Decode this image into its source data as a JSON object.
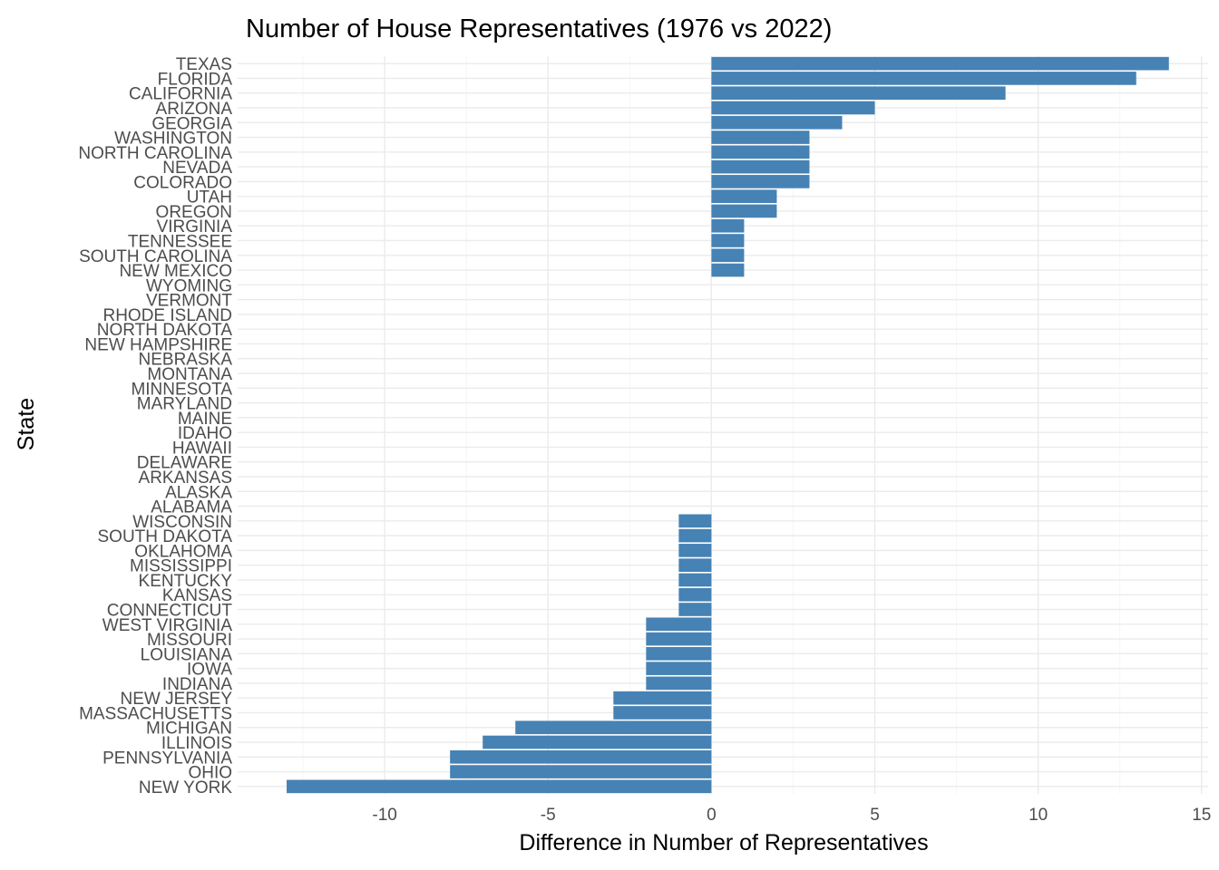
{
  "chart_data": {
    "type": "bar",
    "orientation": "horizontal",
    "title": "Number of House Representatives (1976 vs 2022)",
    "xlabel": "Difference in Number of Representatives",
    "ylabel": "State",
    "xlim": [
      -14.5,
      15.2
    ],
    "xticks": [
      -10,
      -5,
      0,
      5,
      10,
      15
    ],
    "grid": true,
    "bar_color": "#4682B4",
    "categories": [
      "TEXAS",
      "FLORIDA",
      "CALIFORNIA",
      "ARIZONA",
      "GEORGIA",
      "WASHINGTON",
      "NORTH CAROLINA",
      "NEVADA",
      "COLORADO",
      "UTAH",
      "OREGON",
      "VIRGINIA",
      "TENNESSEE",
      "SOUTH CAROLINA",
      "NEW MEXICO",
      "WYOMING",
      "VERMONT",
      "RHODE ISLAND",
      "NORTH DAKOTA",
      "NEW HAMPSHIRE",
      "NEBRASKA",
      "MONTANA",
      "MINNESOTA",
      "MARYLAND",
      "MAINE",
      "IDAHO",
      "HAWAII",
      "DELAWARE",
      "ARKANSAS",
      "ALASKA",
      "ALABAMA",
      "WISCONSIN",
      "SOUTH DAKOTA",
      "OKLAHOMA",
      "MISSISSIPPI",
      "KENTUCKY",
      "KANSAS",
      "CONNECTICUT",
      "WEST VIRGINIA",
      "MISSOURI",
      "LOUISIANA",
      "IOWA",
      "INDIANA",
      "NEW JERSEY",
      "MASSACHUSETTS",
      "MICHIGAN",
      "ILLINOIS",
      "PENNSYLVANIA",
      "OHIO",
      "NEW YORK"
    ],
    "values": [
      14,
      13,
      9,
      5,
      4,
      3,
      3,
      3,
      3,
      2,
      2,
      1,
      1,
      1,
      1,
      0,
      0,
      0,
      0,
      0,
      0,
      0,
      0,
      0,
      0,
      0,
      0,
      0,
      0,
      0,
      0,
      -1,
      -1,
      -1,
      -1,
      -1,
      -1,
      -1,
      -2,
      -2,
      -2,
      -2,
      -2,
      -3,
      -3,
      -6,
      -7,
      -8,
      -8,
      -13
    ]
  }
}
